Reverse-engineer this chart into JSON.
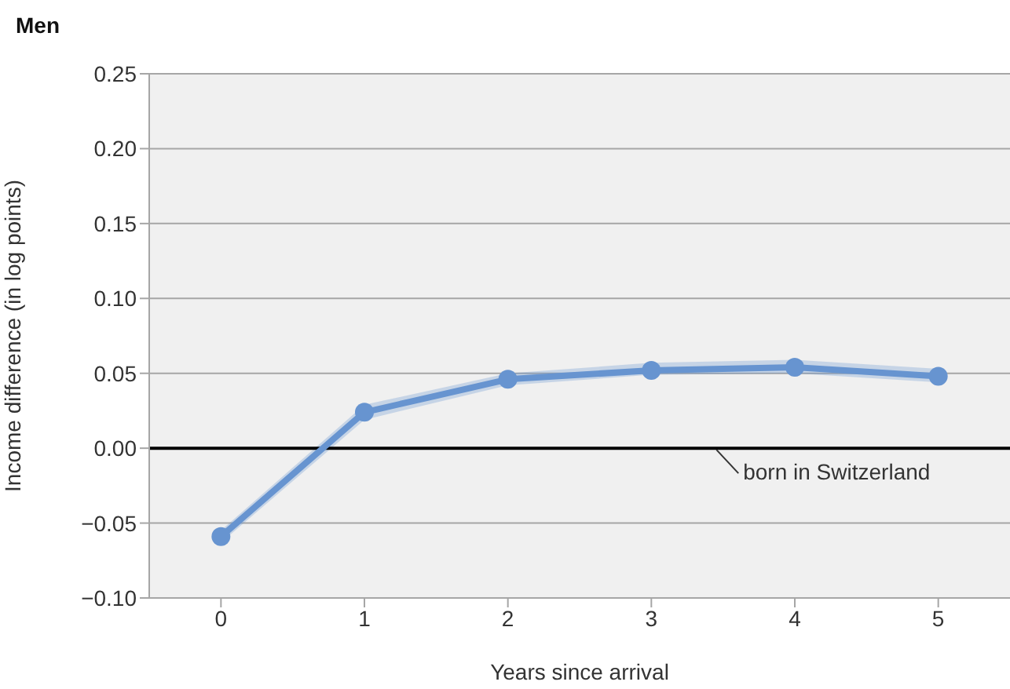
{
  "chart_data": {
    "type": "line",
    "title": "Men",
    "xlabel": "Years since arrival",
    "ylabel": "Income difference (in log points)",
    "categories": [
      "0",
      "1",
      "2",
      "3",
      "4",
      "5"
    ],
    "series": [
      {
        "color": "#6794d0",
        "values": [
          -0.059,
          0.024,
          0.046,
          0.052,
          0.054,
          0.048
        ],
        "lower": [
          -0.063,
          0.019,
          0.042,
          0.049,
          0.05,
          0.044
        ],
        "upper": [
          -0.055,
          0.029,
          0.05,
          0.057,
          0.059,
          0.053
        ]
      }
    ],
    "ylim": [
      -0.1,
      0.25
    ],
    "yticks": [
      {
        "value": -0.1,
        "label": "−0.10"
      },
      {
        "value": -0.05,
        "label": "−0.05"
      },
      {
        "value": 0,
        "label": "0.00"
      },
      {
        "value": 0.05,
        "label": "0.05"
      },
      {
        "value": 0.1,
        "label": "0.10"
      },
      {
        "value": 0.15,
        "label": "0.15"
      },
      {
        "value": 0.2,
        "label": "0.20"
      },
      {
        "value": 0.25,
        "label": "0.25"
      }
    ],
    "ref_lines": [
      {
        "axis": "y",
        "value": 0,
        "label": "born in Switzerland",
        "color": "#000000"
      }
    ],
    "grid": "y",
    "marker": "circle",
    "line_style": "solid",
    "legend": false
  }
}
